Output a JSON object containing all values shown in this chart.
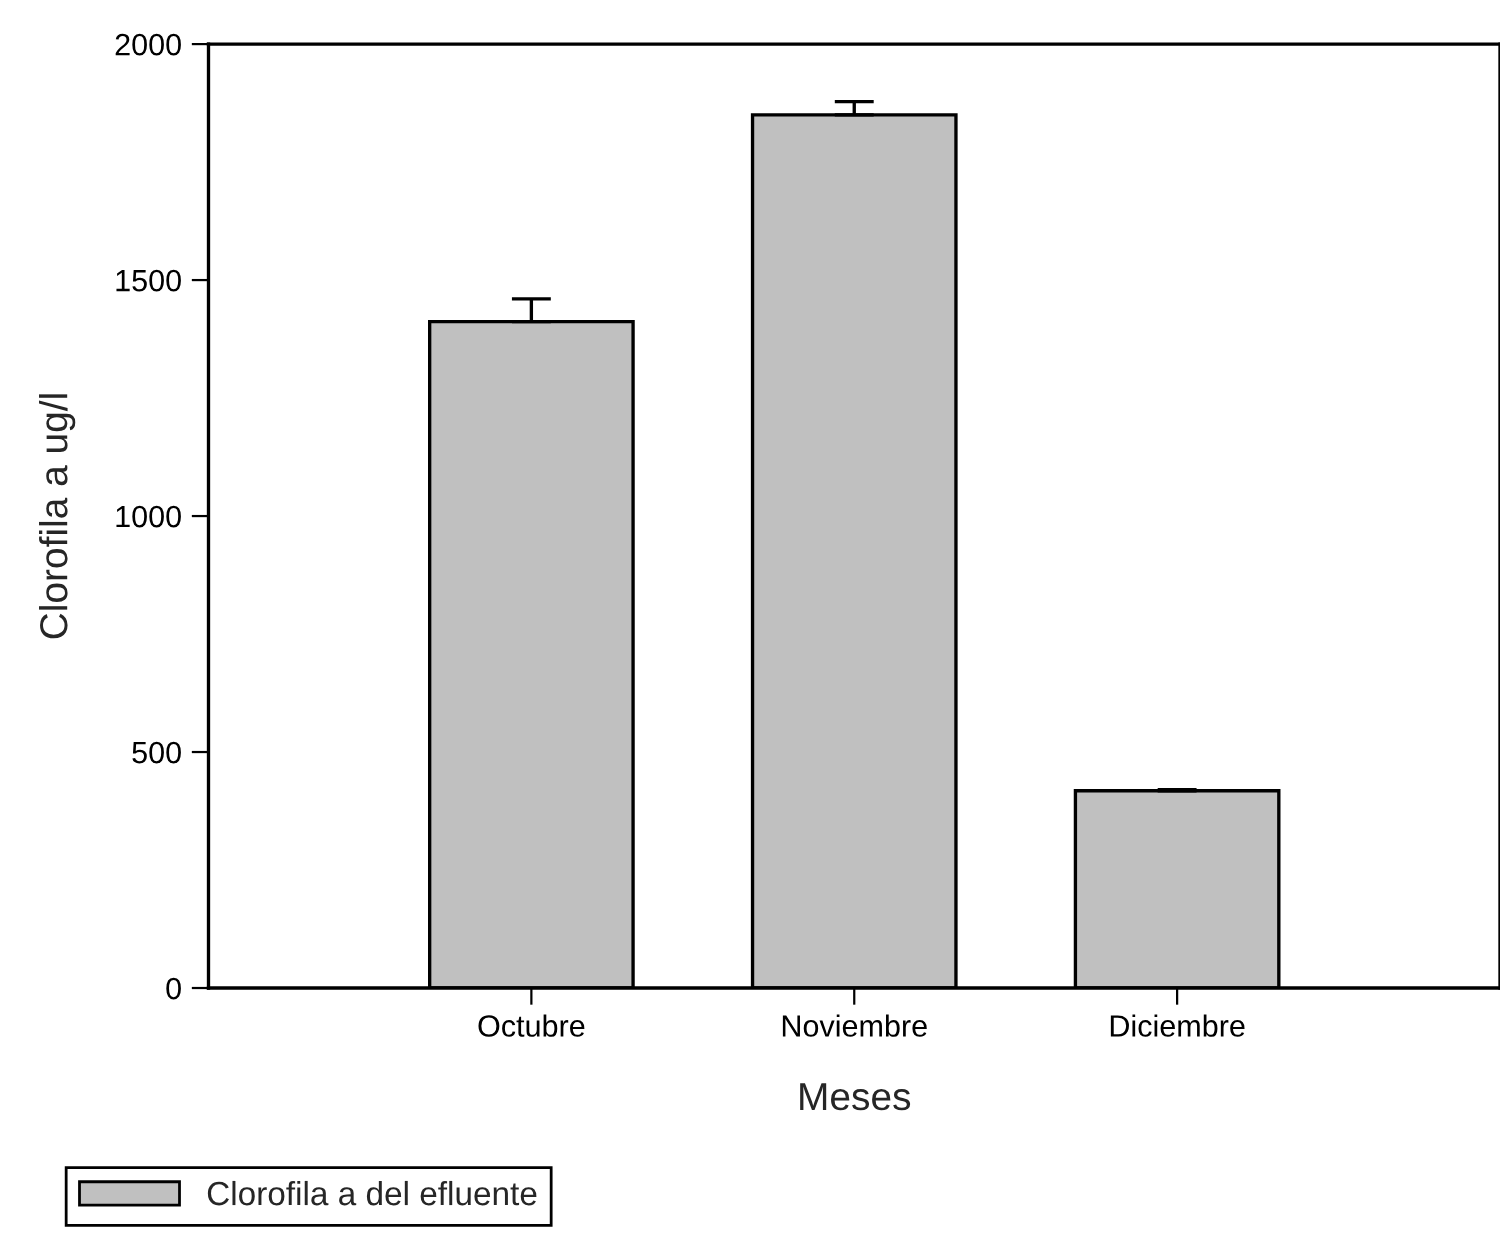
{
  "chart_data": {
    "type": "bar",
    "xlabel": "Meses",
    "ylabel": "Clorofila a ug/l",
    "categories": [
      "Octubre",
      "Noviembre",
      "Diciembre"
    ],
    "series": [
      {
        "name": "Clorofila a del efluente",
        "color": "#c0c0c0",
        "values": [
          1412,
          1850,
          418
        ],
        "errors": [
          [
            1412,
            1460
          ],
          [
            1850,
            1878
          ],
          [
            418,
            420
          ]
        ]
      }
    ],
    "ylim": [
      0,
      2000
    ],
    "yticks": [
      0,
      500,
      1000,
      1500,
      2000
    ],
    "grid": false,
    "legend": "bottom left"
  }
}
